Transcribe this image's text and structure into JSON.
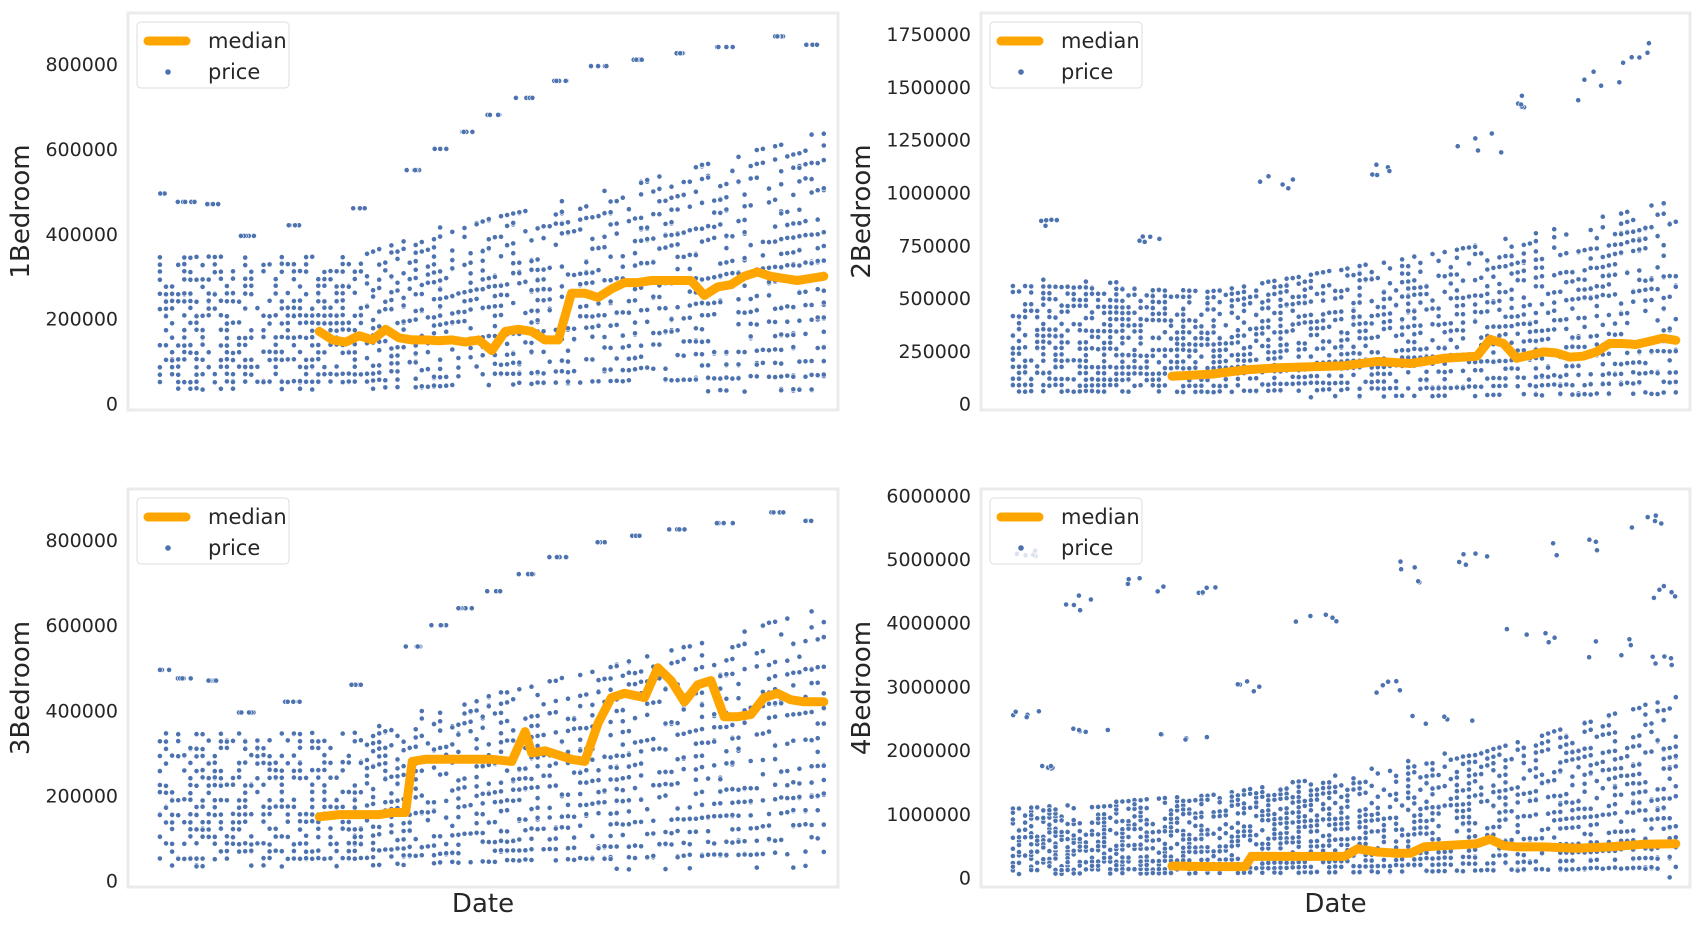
{
  "colors": {
    "median": "#FFA500",
    "price": "#4C72B0",
    "frame": "#ebebeb"
  },
  "chart_data": [
    {
      "type": "scatter",
      "ylabel": "1Bedroom",
      "xlabel": "",
      "ylim": [
        -15000,
        920000
      ],
      "yticks": [
        0,
        200000,
        400000,
        600000,
        800000
      ],
      "ytick_labels": [
        "0",
        "200000",
        "400000",
        "600000",
        "800000"
      ],
      "legend": {
        "entries": [
          "median",
          "price"
        ],
        "placement": "upper left"
      },
      "series": [
        {
          "name": "median",
          "style": "line",
          "x": [
            0.24,
            0.26,
            0.28,
            0.3,
            0.32,
            0.34,
            0.36,
            0.38,
            0.4,
            0.42,
            0.44,
            0.46,
            0.48,
            0.5,
            0.52,
            0.54,
            0.56,
            0.58,
            0.6,
            0.62,
            0.64,
            0.66,
            0.68,
            0.7,
            0.72,
            0.74,
            0.76,
            0.78,
            0.8,
            0.82,
            0.84,
            0.86,
            0.88,
            0.9,
            0.92,
            0.94,
            0.96,
            0.98,
            1.0
          ],
          "values": [
            170000,
            150000,
            145000,
            160000,
            150000,
            175000,
            155000,
            150000,
            150000,
            148000,
            150000,
            145000,
            150000,
            125000,
            170000,
            175000,
            170000,
            150000,
            150000,
            260000,
            260000,
            250000,
            270000,
            285000,
            285000,
            290000,
            290000,
            290000,
            290000,
            255000,
            275000,
            280000,
            300000,
            310000,
            300000,
            295000,
            290000,
            295000,
            300000
          ]
        },
        {
          "name": "price",
          "style": "scatter",
          "band_lo": [
            [
              0,
              40000
            ],
            [
              1,
              35000
            ]
          ],
          "band_hi": [
            [
              0,
              350000
            ],
            [
              0.3,
              350000
            ],
            [
              0.5,
              450000
            ],
            [
              0.7,
              520000
            ],
            [
              1,
              640000
            ]
          ],
          "outliers": [
            [
              0,
              495000,
              0.015,
              0
            ],
            [
              0.04,
              475000,
              0.015,
              0
            ],
            [
              0.08,
              470000,
              0.01,
              0
            ],
            [
              0.13,
              395000,
              0.012,
              0
            ],
            [
              0.2,
              420000,
              0.013,
              0
            ],
            [
              0.3,
              460000,
              0.012,
              0
            ],
            [
              0.38,
              550000,
              0.015,
              0
            ],
            [
              0.42,
              600000,
              0.012,
              0
            ],
            [
              0.46,
              640000,
              0.012,
              0
            ],
            [
              0.5,
              680000,
              0.013,
              0
            ],
            [
              0.55,
              720000,
              0.014,
              0
            ],
            [
              0.6,
              760000,
              0.014,
              0
            ],
            [
              0.66,
              795000,
              0.014,
              0
            ],
            [
              0.72,
              810000,
              0.012,
              0
            ],
            [
              0.78,
              825000,
              0.014,
              0
            ],
            [
              0.85,
              840000,
              0.014,
              0
            ],
            [
              0.93,
              865000,
              0.013,
              0
            ],
            [
              0.98,
              845000,
              0.01,
              0
            ]
          ],
          "n": 1500,
          "seed": 11
        }
      ]
    },
    {
      "type": "scatter",
      "ylabel": "2Bedroom",
      "xlabel": "",
      "ylim": [
        -30000,
        1850000
      ],
      "yticks": [
        0,
        250000,
        500000,
        750000,
        1000000,
        1250000,
        1500000,
        1750000
      ],
      "ytick_labels": [
        "0",
        "250000",
        "500000",
        "750000",
        "1000000",
        "1250000",
        "1500000",
        "1750000"
      ],
      "legend": {
        "entries": [
          "median",
          "price"
        ],
        "placement": "upper left"
      },
      "series": [
        {
          "name": "median",
          "style": "line",
          "x": [
            0.24,
            0.3,
            0.35,
            0.4,
            0.45,
            0.5,
            0.55,
            0.6,
            0.65,
            0.7,
            0.72,
            0.74,
            0.76,
            0.78,
            0.8,
            0.82,
            0.84,
            0.86,
            0.88,
            0.9,
            0.92,
            0.94,
            0.96,
            0.98,
            1.0
          ],
          "values": [
            130000,
            140000,
            160000,
            170000,
            175000,
            180000,
            200000,
            190000,
            215000,
            225000,
            305000,
            285000,
            215000,
            230000,
            245000,
            240000,
            220000,
            225000,
            245000,
            285000,
            285000,
            280000,
            295000,
            310000,
            300000
          ]
        },
        {
          "name": "price",
          "style": "scatter",
          "band_lo": [
            [
              0,
              50000
            ],
            [
              1,
              40000
            ]
          ],
          "band_hi": [
            [
              0,
              580000
            ],
            [
              0.3,
              550000
            ],
            [
              0.5,
              650000
            ],
            [
              0.7,
              750000
            ],
            [
              1,
              950000
            ]
          ],
          "outliers": [
            [
              0.05,
              850000,
              0.02,
              0.05
            ],
            [
              0.2,
              780000,
              0.03,
              0.05
            ],
            [
              0.4,
              1050000,
              0.03,
              0.06
            ],
            [
              0.55,
              1100000,
              0.03,
              0.08
            ],
            [
              0.7,
              1250000,
              0.04,
              0.1
            ],
            [
              0.8,
              1400000,
              0.04,
              0.1
            ],
            [
              0.88,
              1500000,
              0.04,
              0.1
            ],
            [
              0.95,
              1650000,
              0.03,
              0.07
            ]
          ],
          "n": 1800,
          "seed": 23
        }
      ]
    },
    {
      "type": "scatter",
      "ylabel": "3Bedroom",
      "xlabel": "Date",
      "ylim": [
        -15000,
        920000
      ],
      "yticks": [
        0,
        200000,
        400000,
        600000,
        800000
      ],
      "ytick_labels": [
        "0",
        "200000",
        "400000",
        "600000",
        "800000"
      ],
      "legend": {
        "entries": [
          "median",
          "price"
        ],
        "placement": "upper left"
      },
      "series": [
        {
          "name": "median",
          "style": "line",
          "x": [
            0.24,
            0.27,
            0.3,
            0.33,
            0.35,
            0.37,
            0.38,
            0.4,
            0.45,
            0.5,
            0.53,
            0.55,
            0.56,
            0.58,
            0.6,
            0.62,
            0.64,
            0.66,
            0.68,
            0.7,
            0.73,
            0.75,
            0.77,
            0.79,
            0.81,
            0.83,
            0.85,
            0.87,
            0.89,
            0.91,
            0.93,
            0.95,
            0.97,
            1.0
          ],
          "values": [
            150000,
            155000,
            155000,
            155000,
            160000,
            160000,
            280000,
            285000,
            285000,
            285000,
            280000,
            350000,
            300000,
            305000,
            295000,
            285000,
            280000,
            370000,
            430000,
            440000,
            430000,
            500000,
            470000,
            420000,
            460000,
            470000,
            385000,
            385000,
            390000,
            430000,
            440000,
            425000,
            420000,
            420000
          ]
        },
        {
          "name": "price",
          "style": "scatter",
          "band_lo": [
            [
              0,
              40000
            ],
            [
              1,
              35000
            ]
          ],
          "band_hi": [
            [
              0,
              350000
            ],
            [
              0.3,
              350000
            ],
            [
              0.5,
              450000
            ],
            [
              0.7,
              520000
            ],
            [
              1,
              640000
            ]
          ],
          "outliers": [
            [
              0,
              495000,
              0.015,
              0
            ],
            [
              0.04,
              475000,
              0.015,
              0
            ],
            [
              0.08,
              470000,
              0.01,
              0
            ],
            [
              0.13,
              395000,
              0.012,
              0
            ],
            [
              0.2,
              420000,
              0.013,
              0
            ],
            [
              0.3,
              460000,
              0.012,
              0
            ],
            [
              0.38,
              550000,
              0.015,
              0
            ],
            [
              0.42,
              600000,
              0.012,
              0
            ],
            [
              0.46,
              640000,
              0.012,
              0
            ],
            [
              0.5,
              680000,
              0.013,
              0
            ],
            [
              0.55,
              720000,
              0.014,
              0
            ],
            [
              0.6,
              760000,
              0.014,
              0
            ],
            [
              0.66,
              795000,
              0.014,
              0
            ],
            [
              0.72,
              810000,
              0.012,
              0
            ],
            [
              0.78,
              825000,
              0.014,
              0
            ],
            [
              0.85,
              840000,
              0.014,
              0
            ],
            [
              0.93,
              865000,
              0.013,
              0
            ],
            [
              0.98,
              845000,
              0.01,
              0
            ]
          ],
          "n": 1500,
          "seed": 37
        }
      ]
    },
    {
      "type": "scatter",
      "ylabel": "4Bedroom",
      "xlabel": "Date",
      "ylim": [
        -150000,
        6100000
      ],
      "yticks": [
        0,
        1000000,
        2000000,
        3000000,
        4000000,
        5000000,
        6000000
      ],
      "ytick_labels": [
        "0",
        "1000000",
        "2000000",
        "3000000",
        "4000000",
        "5000000",
        "6000000"
      ],
      "legend": {
        "entries": [
          "median",
          "price"
        ],
        "placement": "upper left"
      },
      "series": [
        {
          "name": "median",
          "style": "line",
          "x": [
            0.24,
            0.3,
            0.35,
            0.36,
            0.42,
            0.48,
            0.5,
            0.52,
            0.55,
            0.58,
            0.6,
            0.62,
            0.65,
            0.7,
            0.72,
            0.74,
            0.76,
            0.8,
            0.85,
            0.9,
            0.95,
            1.0
          ],
          "values": [
            180000,
            170000,
            170000,
            330000,
            330000,
            330000,
            330000,
            450000,
            400000,
            380000,
            380000,
            480000,
            500000,
            530000,
            600000,
            500000,
            480000,
            480000,
            460000,
            480000,
            520000,
            530000
          ]
        },
        {
          "name": "price",
          "style": "scatter",
          "band_lo": [
            [
              0,
              80000
            ],
            [
              1,
              60000
            ]
          ],
          "band_hi": [
            [
              0,
              1100000
            ],
            [
              0.3,
              1300000
            ],
            [
              0.5,
              1600000
            ],
            [
              0.7,
              2000000
            ],
            [
              1,
              2900000
            ]
          ],
          "outliers": [
            [
              0.02,
              5100000,
              0.02,
              0.03
            ],
            [
              0.02,
              2550000,
              0.02,
              0.05
            ],
            [
              0.05,
              1750000,
              0.03,
              0.05
            ],
            [
              0.1,
              4300000,
              0.03,
              0.06
            ],
            [
              0.12,
              2300000,
              0.04,
              0.05
            ],
            [
              0.2,
              4600000,
              0.03,
              0.06
            ],
            [
              0.25,
              2200000,
              0.05,
              0.06
            ],
            [
              0.3,
              4500000,
              0.02,
              0.06
            ],
            [
              0.38,
              3000000,
              0.05,
              0.07
            ],
            [
              0.45,
              4100000,
              0.05,
              0.07
            ],
            [
              0.55,
              3000000,
              0.05,
              0.07
            ],
            [
              0.6,
              4800000,
              0.03,
              0.07
            ],
            [
              0.65,
              2500000,
              0.05,
              0.07
            ],
            [
              0.7,
              5000000,
              0.03,
              0.05
            ],
            [
              0.78,
              3800000,
              0.04,
              0.08
            ],
            [
              0.85,
              5200000,
              0.04,
              0.06
            ],
            [
              0.9,
              3600000,
              0.04,
              0.08
            ],
            [
              0.96,
              5600000,
              0.03,
              0.04
            ],
            [
              0.98,
              4500000,
              0.02,
              0.05
            ],
            [
              0.98,
              3400000,
              0.02,
              0.05
            ]
          ],
          "n": 1800,
          "seed": 51
        }
      ]
    }
  ]
}
